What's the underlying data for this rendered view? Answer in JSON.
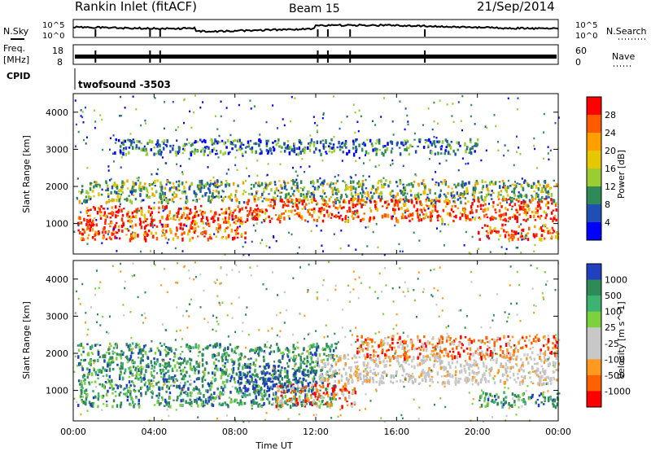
{
  "header": {
    "site": "Rankin Inlet (fitACF)",
    "beam": "Beam 15",
    "date": "21/Sep/2014"
  },
  "panels": {
    "nsky_label": "N.Sky",
    "nsky_tick_top": "10^5",
    "nsky_tick_bottom": "10^0",
    "nsearch_label": "N.Search",
    "freq_label_1": "Freq.",
    "freq_label_2": "[MHz]",
    "freq_tick_top": "18",
    "freq_tick_bottom": "8",
    "nave_label": "Nave",
    "nave_tick_top": "60",
    "nave_tick_bottom": "0",
    "cpid_label": "CPID",
    "cpid_value": "twofsound -3503"
  },
  "chart_data": [
    {
      "type": "heatmap",
      "name": "power",
      "ylabel": "Slant Range [km]",
      "yticks": [
        1000,
        2000,
        3000,
        4000
      ],
      "ylim": [
        180,
        4500
      ],
      "xlim": [
        0,
        24
      ],
      "colorbar": {
        "label": "Power [dB]",
        "ticks": [
          "28",
          "24",
          "20",
          "16",
          "12",
          "8",
          "4"
        ],
        "colors": [
          "#ff0000",
          "#ff5a00",
          "#ff9e00",
          "#e6c800",
          "#9acd32",
          "#2e8b57",
          "#1f4fb5",
          "#0000ff"
        ]
      },
      "bands": [
        {
          "t": [
            0.2,
            24
          ],
          "r": [
            1600,
            2200
          ],
          "level": "mid"
        },
        {
          "t": [
            0.2,
            8.5
          ],
          "r": [
            600,
            1500
          ],
          "level": "high"
        },
        {
          "t": [
            8.5,
            24
          ],
          "r": [
            1100,
            1700
          ],
          "level": "high"
        },
        {
          "t": [
            20,
            24
          ],
          "r": [
            600,
            1000
          ],
          "level": "high"
        },
        {
          "t": [
            2,
            20
          ],
          "r": [
            2900,
            3300
          ],
          "level": "low"
        }
      ]
    },
    {
      "type": "heatmap",
      "name": "velocity",
      "ylabel": "Slant Range [km]",
      "yticks": [
        1000,
        2000,
        3000,
        4000
      ],
      "ylim": [
        180,
        4500
      ],
      "xlim": [
        0,
        24
      ],
      "colorbar": {
        "label": "Velocity [m s^-1]",
        "ticks": [
          "1000",
          "500",
          "100",
          "25",
          "-25",
          "-100",
          "-500",
          "-1000"
        ],
        "colors": [
          "#2040c0",
          "#2e8b57",
          "#3cb371",
          "#7cd23c",
          "#c8c8c8",
          "#c8c8c8",
          "#ff9a20",
          "#ff6000",
          "#ff0000"
        ]
      },
      "bands": [
        {
          "t": [
            0.2,
            13
          ],
          "r": [
            600,
            2300
          ],
          "level": "pos"
        },
        {
          "t": [
            8,
            12
          ],
          "r": [
            1000,
            1700
          ],
          "level": "pos-high"
        },
        {
          "t": [
            12,
            24
          ],
          "r": [
            1200,
            2000
          ],
          "level": "near-zero"
        },
        {
          "t": [
            14,
            24
          ],
          "r": [
            1900,
            2500
          ],
          "level": "neg"
        },
        {
          "t": [
            10,
            14
          ],
          "r": [
            600,
            1200
          ],
          "level": "neg"
        },
        {
          "t": [
            20,
            24
          ],
          "r": [
            600,
            1000
          ],
          "level": "pos"
        }
      ]
    }
  ],
  "xaxis": {
    "label": "Time UT",
    "ticks": [
      "00:00",
      "04:00",
      "08:00",
      "12:00",
      "16:00",
      "20:00",
      "00:00"
    ],
    "hours": [
      0,
      4,
      8,
      12,
      16,
      20,
      24
    ]
  }
}
